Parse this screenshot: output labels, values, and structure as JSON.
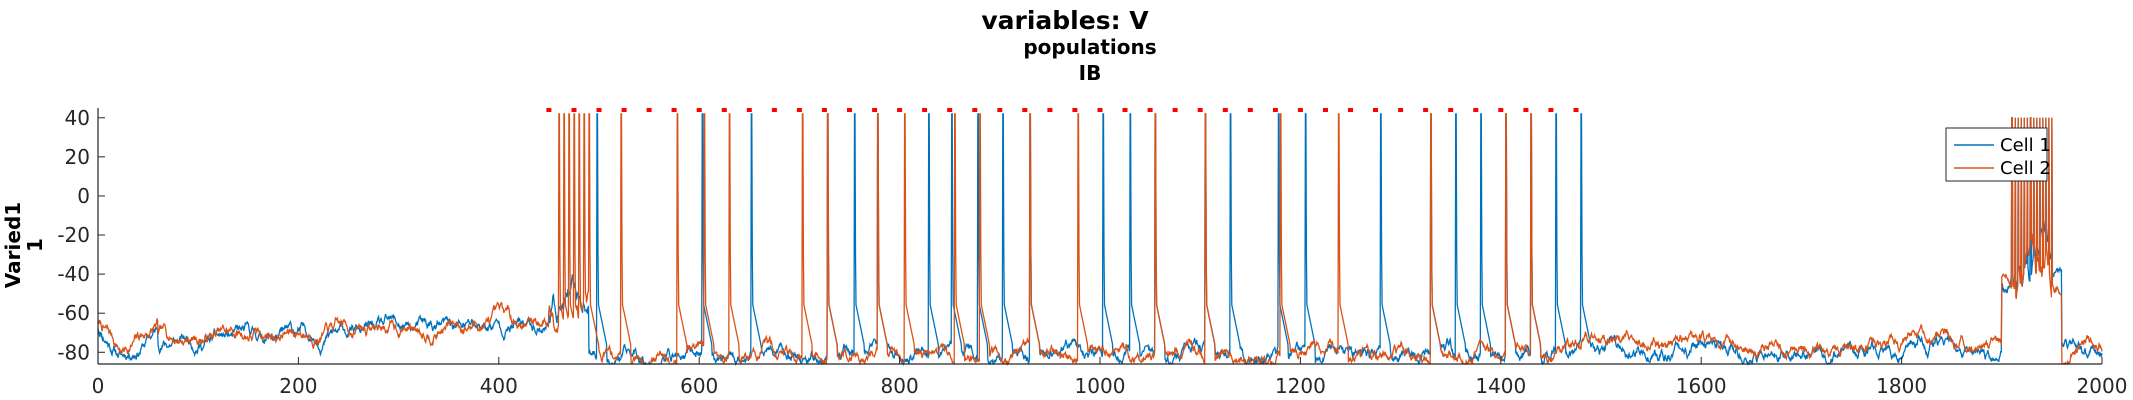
{
  "chart_data": {
    "type": "line",
    "title": "variables: V",
    "subtitle": "populations",
    "subtitle2": "IB",
    "ylabel_line1": "Varied1",
    "ylabel_line2": "1",
    "xlim": [
      0,
      2000
    ],
    "ylim": [
      -86,
      45
    ],
    "x_ticks": [
      0,
      200,
      400,
      600,
      800,
      1000,
      1200,
      1400,
      1600,
      1800,
      2000
    ],
    "y_ticks": [
      -80,
      -60,
      -40,
      -20,
      0,
      20,
      40
    ],
    "grid": false,
    "legend_position": "top-right",
    "series": [
      {
        "name": "Cell 1",
        "color": "#0072BD"
      },
      {
        "name": "Cell 2",
        "color": "#D95319"
      }
    ],
    "stim_phase": {
      "start": 450,
      "end": 1480
    },
    "cell1_spike_times": [
      498,
      603,
      652,
      728,
      755,
      778,
      829,
      852,
      878,
      903,
      930,
      1003,
      1030,
      1055,
      1105,
      1130,
      1178,
      1205,
      1280,
      1330,
      1355,
      1380,
      1405,
      1430,
      1455,
      1480
    ],
    "cell2_spike_times": [
      460,
      465,
      470,
      475,
      480,
      485,
      490,
      522,
      578,
      605,
      630,
      703,
      728,
      778,
      805,
      855,
      880,
      930,
      978,
      1055,
      1105,
      1180,
      1238,
      1330,
      1405,
      1430
    ],
    "burst_end": {
      "start": 1910,
      "end": 1950
    },
    "marker_color": "#FF0000",
    "marker_y": 44,
    "marker_times": [
      450,
      475,
      500,
      525,
      550,
      575,
      600,
      625,
      650,
      675,
      700,
      725,
      750,
      775,
      800,
      825,
      850,
      875,
      900,
      925,
      950,
      975,
      1000,
      1025,
      1050,
      1075,
      1100,
      1125,
      1150,
      1175,
      1200,
      1225,
      1250,
      1275,
      1300,
      1325,
      1350,
      1375,
      1400,
      1425,
      1450,
      1475
    ]
  }
}
